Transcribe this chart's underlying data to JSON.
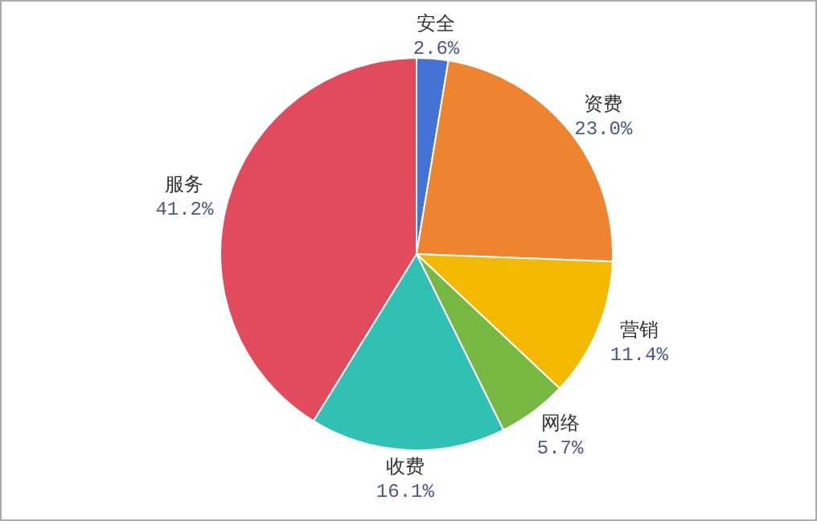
{
  "chart_data": {
    "type": "pie",
    "categories": [
      "安全",
      "资费",
      "营销",
      "网络",
      "收费",
      "服务"
    ],
    "values": [
      2.6,
      23.0,
      11.4,
      5.7,
      16.1,
      41.2
    ],
    "value_labels": [
      "2.6%",
      "23.0%",
      "11.4%",
      "5.7%",
      "16.1%",
      "41.2%"
    ],
    "colors": [
      "#4472d6",
      "#ee8430",
      "#f2b900",
      "#77b843",
      "#30c1b4",
      "#e24b5e"
    ],
    "legend": false
  }
}
